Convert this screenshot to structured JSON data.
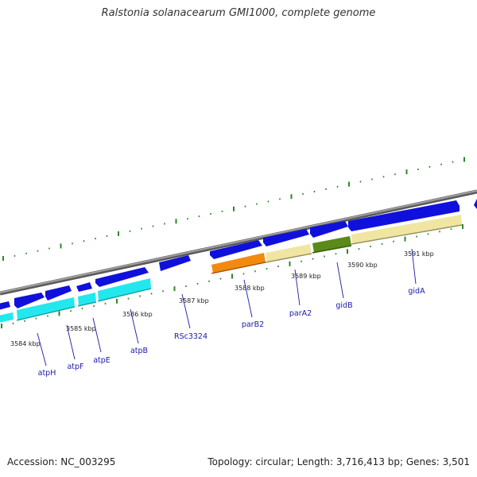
{
  "title": "Ralstonia solanacearum GMI1000, complete genome",
  "accession": "Accession: NC_003295",
  "summary": "Topology: circular; Length: 3,716,413 bp; Genes: 3,501",
  "colors": {
    "backbone": "#8a8a8a",
    "ticks": "#2a8a2a",
    "forward_gene": "#1010dd",
    "cog_cyan": "#22e8ee",
    "cog_orange": "#f28a10",
    "cog_khaki": "#f0e6a2",
    "cog_olive": "#5a8a18",
    "label": "#1a1aaa"
  },
  "scale_labels": [
    "3584 kbp",
    "3585 kbp",
    "3586 kbp",
    "3587 kbp",
    "3588 kbp",
    "3589 kbp",
    "3590 kbp",
    "3591 kbp"
  ],
  "gene_labels": [
    "atpH",
    "atpF",
    "atpE",
    "atpB",
    "RSc3324",
    "parB2",
    "parA2",
    "gidB",
    "gidA"
  ]
}
